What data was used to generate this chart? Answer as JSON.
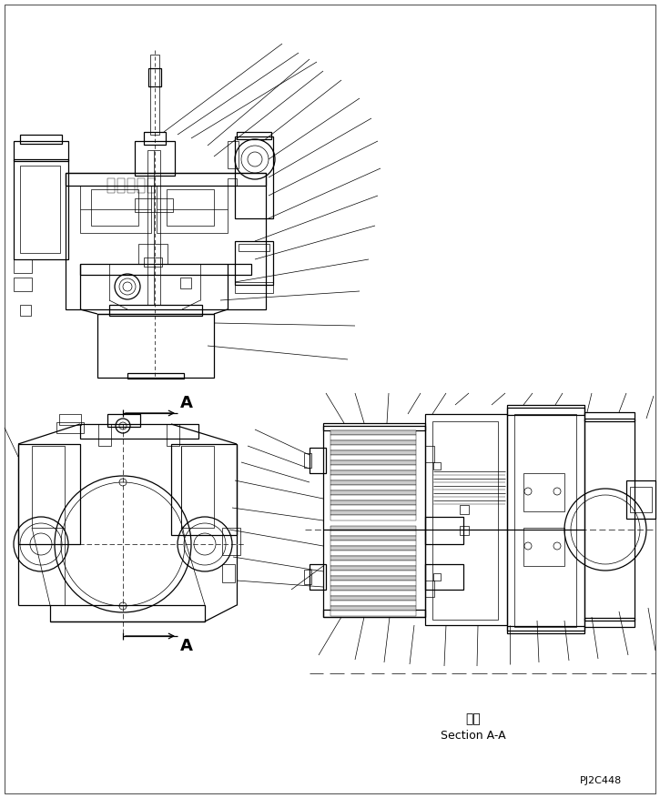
{
  "bg_color": "#ffffff",
  "line_color": "#000000",
  "fig_width": 7.25,
  "fig_height": 8.77,
  "dpi": 100,
  "text_section_label_ja": "断面",
  "text_section_label_en": "Section A-A",
  "text_part_number": "PJ2C448",
  "text_A": "A",
  "lw_thick": 1.4,
  "lw_med": 0.9,
  "lw_thin": 0.5,
  "lw_xtra": 0.3
}
